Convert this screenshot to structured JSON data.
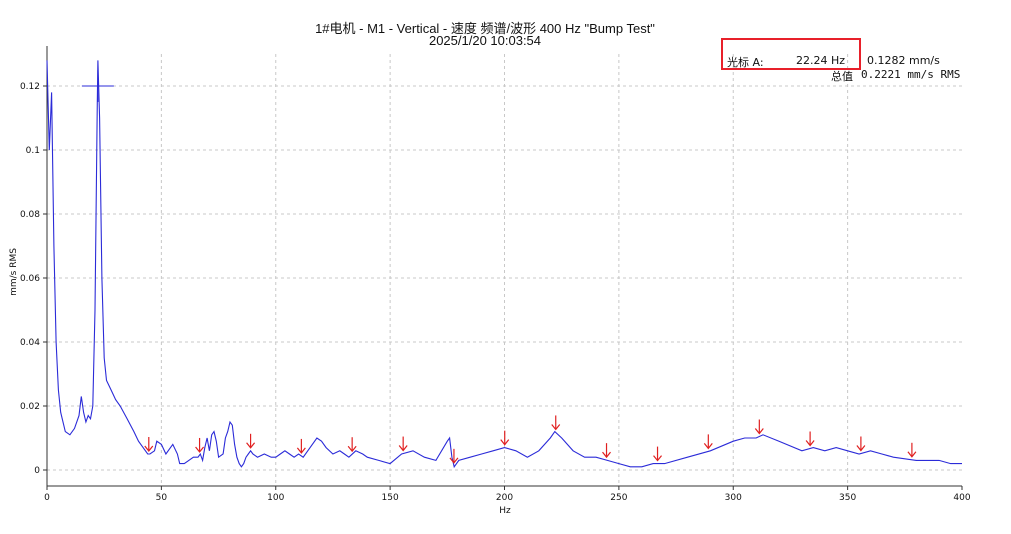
{
  "title": "1#电机 - M1 - Vertical - 速度 频谱/波形 400 Hz \"Bump Test\"",
  "subtitle": "2025/1/20 10:03:54",
  "cursor": {
    "label": "光标 A:",
    "freq": "22.24 Hz",
    "amp": "0.1282 mm/s"
  },
  "overall": {
    "label": "总值",
    "value": "0.2221 mm/s RMS"
  },
  "colors": {
    "trace": "#2b2bd8",
    "marker": "#e02020",
    "highlight": "#e8202a",
    "grid": "#c8c8c8"
  },
  "chart_data": {
    "type": "line",
    "xlabel": "Hz",
    "ylabel": "mm/s RMS",
    "xlim": [
      0,
      400
    ],
    "ylim": [
      -0.005,
      0.13
    ],
    "xticks": [
      0,
      50,
      100,
      150,
      200,
      250,
      300,
      350,
      400
    ],
    "yticks": [
      0,
      0.02,
      0.04,
      0.06,
      0.08,
      0.1,
      0.12
    ],
    "grid": true,
    "series": [
      {
        "x": [
          0,
          1,
          2,
          3,
          4,
          5,
          6,
          7,
          8,
          10,
          12,
          14,
          15,
          16,
          17,
          18,
          19,
          20,
          21,
          22,
          22.24,
          23,
          24,
          25,
          26,
          28,
          30,
          32,
          35,
          38,
          40,
          42,
          44,
          45,
          47,
          48,
          50,
          52,
          54,
          55,
          57,
          58,
          60,
          62,
          64,
          66,
          67,
          68,
          69,
          70,
          71,
          72,
          73,
          74,
          75,
          77,
          78,
          79,
          80,
          81,
          82,
          83,
          84,
          85,
          86,
          87,
          88,
          89,
          90,
          92,
          95,
          98,
          100,
          102,
          104,
          106,
          108,
          110,
          112,
          115,
          118,
          120,
          122,
          125,
          128,
          130,
          132,
          135,
          138,
          140,
          145,
          150,
          155,
          160,
          165,
          170,
          175,
          176,
          177,
          178,
          180,
          185,
          190,
          195,
          200,
          205,
          210,
          215,
          220,
          222,
          225,
          230,
          235,
          240,
          245,
          250,
          255,
          260,
          265,
          270,
          280,
          290,
          300,
          305,
          310,
          313,
          320,
          330,
          335,
          340,
          345,
          350,
          355,
          360,
          365,
          370,
          380,
          390,
          395,
          400
        ],
        "values": [
          0.128,
          0.1,
          0.118,
          0.07,
          0.04,
          0.025,
          0.018,
          0.015,
          0.012,
          0.011,
          0.013,
          0.017,
          0.023,
          0.018,
          0.015,
          0.017,
          0.016,
          0.02,
          0.05,
          0.115,
          0.128,
          0.11,
          0.06,
          0.035,
          0.028,
          0.025,
          0.022,
          0.02,
          0.016,
          0.012,
          0.009,
          0.007,
          0.005,
          0.005,
          0.006,
          0.009,
          0.008,
          0.005,
          0.007,
          0.008,
          0.005,
          0.002,
          0.002,
          0.003,
          0.004,
          0.004,
          0.005,
          0.003,
          0.007,
          0.01,
          0.006,
          0.011,
          0.012,
          0.009,
          0.004,
          0.005,
          0.01,
          0.012,
          0.015,
          0.014,
          0.008,
          0.004,
          0.002,
          0.001,
          0.002,
          0.004,
          0.005,
          0.006,
          0.005,
          0.004,
          0.005,
          0.004,
          0.004,
          0.005,
          0.006,
          0.005,
          0.004,
          0.005,
          0.004,
          0.007,
          0.01,
          0.009,
          0.007,
          0.005,
          0.006,
          0.005,
          0.004,
          0.006,
          0.005,
          0.004,
          0.003,
          0.002,
          0.005,
          0.006,
          0.004,
          0.003,
          0.009,
          0.01,
          0.004,
          0.001,
          0.003,
          0.004,
          0.005,
          0.006,
          0.007,
          0.006,
          0.004,
          0.006,
          0.01,
          0.012,
          0.01,
          0.006,
          0.004,
          0.004,
          0.003,
          0.002,
          0.001,
          0.001,
          0.002,
          0.002,
          0.004,
          0.006,
          0.009,
          0.01,
          0.01,
          0.011,
          0.009,
          0.006,
          0.007,
          0.006,
          0.007,
          0.006,
          0.005,
          0.006,
          0.005,
          0.004,
          0.003,
          0.003,
          0.002,
          0.002
        ]
      }
    ],
    "harmonic_markers_hz": [
      44.5,
      66.7,
      89,
      111.2,
      133.4,
      155.7,
      177.9,
      200.1,
      222.4,
      244.6,
      266.9,
      289.1,
      311.4,
      333.6,
      355.8,
      378.1
    ],
    "cursor_x": 22.24
  }
}
